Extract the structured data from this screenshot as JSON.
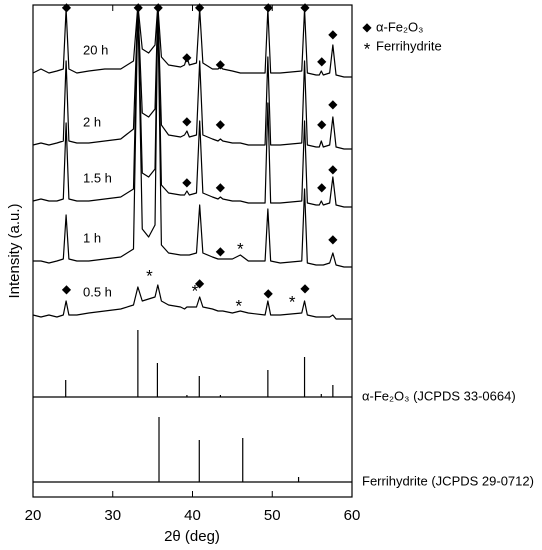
{
  "chart_data": {
    "type": "line",
    "x_label": "2θ (deg)",
    "y_label": "Intensity (a.u.)",
    "xlim": [
      20,
      60
    ],
    "xticks": [
      20,
      30,
      40,
      50,
      60
    ],
    "ylim": [
      0,
      123
    ],
    "x": [
      20,
      21,
      22,
      23,
      23.8,
      24.15,
      24.5,
      25.5,
      27,
      29,
      31,
      32.6,
      33.15,
      33.7,
      34.5,
      35.3,
      35.65,
      36.1,
      37,
      38.5,
      39,
      39.3,
      39.6,
      40.5,
      40.9,
      41.3,
      42.5,
      43.2,
      43.5,
      43.8,
      45,
      46,
      47,
      49.1,
      49.45,
      49.8,
      51,
      53.7,
      54.05,
      54.4,
      55.5,
      55.9,
      56.15,
      56.4,
      57.2,
      57.6,
      58,
      59,
      60
    ],
    "series": [
      {
        "name": "20 h",
        "color": "#000000",
        "values": [
          106,
          107,
          106,
          106.5,
          107,
          122,
          107,
          106,
          106.5,
          107,
          107,
          109,
          123,
          112,
          111,
          113,
          123,
          110,
          108,
          107.5,
          108,
          110,
          108,
          108.5,
          122,
          108.5,
          107,
          107,
          107.5,
          107,
          106.5,
          106,
          106,
          106,
          122,
          106,
          106,
          106.5,
          122,
          106,
          105.5,
          105.5,
          106.5,
          105.5,
          106,
          113,
          105.5,
          105,
          105
        ]
      },
      {
        "name": "2 h",
        "color": "#000000",
        "values": [
          88,
          88.5,
          88,
          88.5,
          89,
          109,
          89,
          88.5,
          88.5,
          89,
          89.5,
          92,
          123,
          96,
          95,
          97,
          123,
          93,
          90.5,
          90,
          90.5,
          91.5,
          90,
          90.5,
          109,
          90.5,
          89.5,
          89,
          89.5,
          89,
          88.5,
          88.5,
          88,
          88,
          110,
          88,
          88,
          88.5,
          109,
          88,
          87.5,
          87.5,
          89,
          87.5,
          88,
          95,
          87.5,
          87,
          87
        ]
      },
      {
        "name": "1.5 h",
        "color": "#000000",
        "values": [
          74,
          74.5,
          74,
          74,
          74.5,
          93.5,
          74.5,
          74,
          74,
          74.5,
          75,
          77,
          123,
          81,
          80,
          82,
          123,
          78,
          76,
          75.5,
          75.5,
          76.5,
          75.5,
          76,
          94,
          76,
          75,
          74.5,
          75,
          74.5,
          74,
          74,
          73.5,
          73.5,
          98.5,
          73.5,
          73.5,
          74,
          94,
          73.5,
          73,
          73,
          74,
          73,
          73.5,
          80,
          73,
          72.5,
          72.5
        ]
      },
      {
        "name": "1 h",
        "color": "#000000",
        "values": [
          59,
          59,
          58.5,
          59,
          59.5,
          70.5,
          59.5,
          59,
          59,
          59.5,
          60,
          62,
          123,
          67,
          65,
          68,
          123,
          63,
          61,
          60.5,
          60.5,
          60.5,
          60.5,
          61,
          73,
          61,
          60,
          59.5,
          59.5,
          59.5,
          59.5,
          60.5,
          59,
          59,
          72,
          59,
          58.5,
          59,
          77,
          58.5,
          58,
          58,
          58,
          58,
          58.5,
          61,
          58,
          57.5,
          57.5
        ]
      },
      {
        "name": "0.5 h",
        "color": "#000000",
        "values": [
          45.5,
          45,
          45.5,
          45,
          45.5,
          49,
          45.5,
          45.5,
          46,
          46.5,
          47,
          48,
          52.5,
          49,
          49.5,
          50,
          53,
          49,
          48,
          47.5,
          47,
          47.5,
          47.5,
          47.5,
          50,
          47.5,
          47,
          46.5,
          46.5,
          46.5,
          46,
          46.5,
          46,
          45.5,
          49,
          45.5,
          45.5,
          46,
          49,
          45.5,
          45,
          45,
          45,
          45,
          45,
          45.5,
          44.5,
          44.5,
          44.5
        ]
      }
    ],
    "references": [
      {
        "name": "α-Fe₂O₃ (JCPDS 33-0664)",
        "baseline": 25,
        "x": [
          24.1,
          33.15,
          35.6,
          39.3,
          40.85,
          43.5,
          49.45,
          54.05,
          56.15,
          57.6
        ],
        "values": [
          29.25,
          41.75,
          33.5,
          25.5,
          30.25,
          25.5,
          31.75,
          35,
          25.75,
          28
        ]
      },
      {
        "name": "Ferrihydrite  (JCPDS 29-0712)",
        "baseline": 3.75,
        "x": [
          35.8,
          40.85,
          46.3,
          53.3
        ],
        "values": [
          20,
          14.25,
          14.75,
          5
        ]
      }
    ],
    "markers": [
      {
        "symbol": "◆",
        "name": "α-Fe₂O₃",
        "x": [
          24.2,
          33.2,
          35.7,
          40.9,
          49.5,
          54.1,
          57.6,
          39.3,
          43.5,
          56.2,
          57.6,
          39.3,
          43.5,
          56.2,
          57.6,
          39.3,
          43.5,
          56.2,
          57.6,
          43.5,
          24.2,
          40.9,
          49.5,
          54.1
        ],
        "y": [
          122.25,
          122.25,
          122.25,
          122.25,
          122.25,
          122.25,
          115.5,
          109.75,
          108,
          108.75,
          98,
          93.75,
          93,
          93,
          81.75,
          78.5,
          77.25,
          77.25,
          64.25,
          61.25,
          51.75,
          53.25,
          50.75,
          52
        ]
      },
      {
        "symbol": "*",
        "name": "Ferrihydrite",
        "x": [
          46.0,
          34.6,
          40.3,
          45.8,
          52.5
        ],
        "y": [
          61.75,
          55,
          51.25,
          47.5,
          48.5
        ]
      }
    ]
  }
}
